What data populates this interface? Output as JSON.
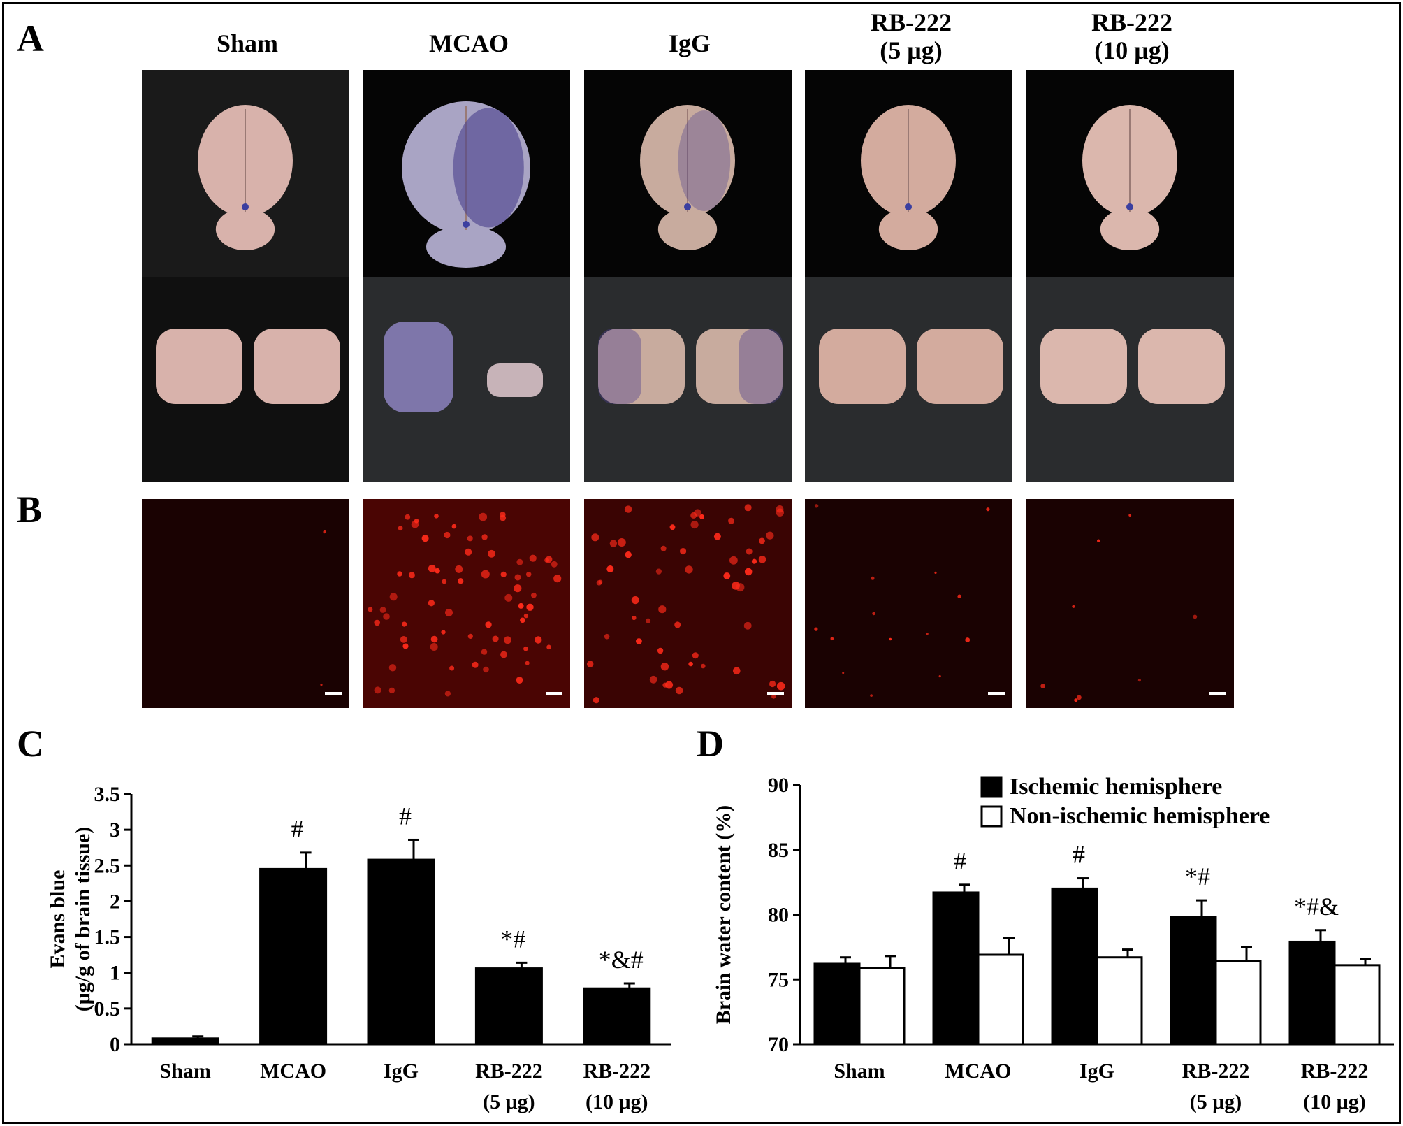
{
  "panels": {
    "a": {
      "letter": "A"
    },
    "b": {
      "letter": "B"
    },
    "c": {
      "letter": "C"
    },
    "d": {
      "letter": "D"
    }
  },
  "groups": [
    {
      "id": "sham",
      "label": "Sham",
      "label_line2": ""
    },
    {
      "id": "mcao",
      "label": "MCAO",
      "label_line2": ""
    },
    {
      "id": "igg",
      "label": "IgG",
      "label_line2": ""
    },
    {
      "id": "rb5",
      "label": "RB-222",
      "label_line2": "(5 μg)"
    },
    {
      "id": "rb10",
      "label": "RB-222",
      "label_line2": "(10 μg)"
    }
  ],
  "photos": {
    "brain_tint": [
      "#d8b2ab",
      "#a9a4c4",
      "#c8ab9e",
      "#d3ab9e",
      "#dbb7ad"
    ],
    "stain_color": "#4a3f8c",
    "fluor_color": "#ff2a1a"
  },
  "chart_data": [
    {
      "type": "bar",
      "panel": "C",
      "categories": [
        "Sham",
        "MCAO",
        "IgG",
        "RB-222",
        "RB-222"
      ],
      "categories_line2": [
        "",
        "",
        "",
        "(5 μg)",
        "(10 μg)"
      ],
      "ylabel": "Evans blue",
      "ylabel_line2": "(μg/g of brain tissue)",
      "ylim": [
        0,
        3.5
      ],
      "yticks": [
        0,
        0.5,
        1,
        1.5,
        2,
        2.5,
        3,
        3.5
      ],
      "ytick_labels": [
        "0",
        "0.5",
        "1",
        "1.5",
        "2",
        "2.5",
        "3",
        "3.5"
      ],
      "series": [
        {
          "name": "",
          "color": "#000000",
          "values": [
            0.08,
            2.45,
            2.58,
            1.06,
            0.78
          ],
          "errors": [
            0.03,
            0.23,
            0.28,
            0.08,
            0.07
          ],
          "annotations": [
            "",
            "#",
            "#",
            "*#",
            "*&#"
          ]
        }
      ],
      "legend": "none",
      "grid": false
    },
    {
      "type": "bar",
      "panel": "D",
      "categories": [
        "Sham",
        "MCAO",
        "IgG",
        "RB-222",
        "RB-222"
      ],
      "categories_line2": [
        "",
        "",
        "",
        "(5 μg)",
        "(10 μg)"
      ],
      "ylabel": "Brain water content (%)",
      "ylim": [
        70,
        90
      ],
      "yticks": [
        70,
        75,
        80,
        85,
        90
      ],
      "ytick_labels": [
        "70",
        "75",
        "80",
        "85",
        "90"
      ],
      "series": [
        {
          "name": "Ischemic hemisphere",
          "color": "#000000",
          "values": [
            76.2,
            81.7,
            82.0,
            79.8,
            77.9
          ],
          "errors": [
            0.5,
            0.6,
            0.8,
            1.3,
            0.9
          ],
          "annotations": [
            "",
            "#",
            "#",
            "*#",
            "*#&"
          ]
        },
        {
          "name": "Non-ischemic hemisphere",
          "color": "#ffffff",
          "values": [
            75.9,
            76.9,
            76.7,
            76.4,
            76.1
          ],
          "errors": [
            0.9,
            1.3,
            0.6,
            1.1,
            0.5
          ],
          "annotations": [
            "",
            "",
            "",
            "",
            ""
          ]
        }
      ],
      "legend": "top-right",
      "grid": false
    }
  ]
}
